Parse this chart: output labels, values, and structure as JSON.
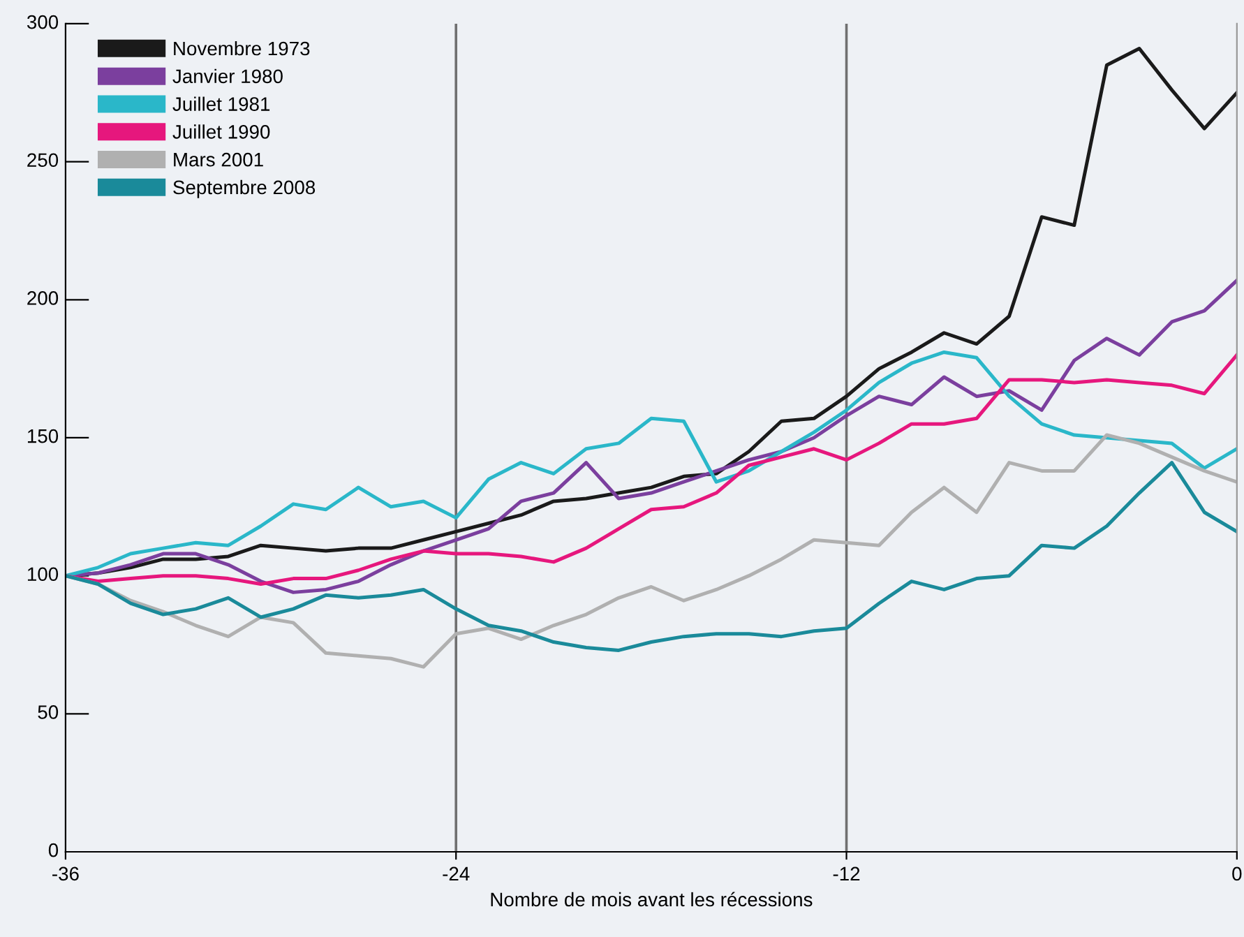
{
  "chart_data": {
    "type": "line",
    "xlabel": "Nombre de mois avant les récessions",
    "x": [
      -36,
      -35,
      -34,
      -33,
      -32,
      -31,
      -30,
      -29,
      -28,
      -27,
      -26,
      -25,
      -24,
      -23,
      -22,
      -21,
      -20,
      -19,
      -18,
      -17,
      -16,
      -15,
      -14,
      -13,
      -12,
      -11,
      -10,
      -9,
      -8,
      -7,
      -6,
      -5,
      -4,
      -3,
      -2,
      -1,
      0
    ],
    "series": [
      {
        "name": "Novembre 1973",
        "color": "#1a1a1a",
        "values": [
          100,
          101,
          103,
          106,
          106,
          107,
          111,
          110,
          109,
          110,
          110,
          113,
          116,
          119,
          122,
          127,
          128,
          130,
          132,
          136,
          137,
          145,
          156,
          157,
          165,
          175,
          181,
          188,
          184,
          194,
          230,
          227,
          285,
          291,
          276,
          262,
          275
        ]
      },
      {
        "name": "Janvier 1980",
        "color": "#7b3f9e",
        "values": [
          100,
          101,
          104,
          108,
          108,
          104,
          98,
          94,
          95,
          98,
          104,
          109,
          113,
          117,
          127,
          130,
          141,
          128,
          130,
          134,
          138,
          142,
          145,
          150,
          158,
          165,
          162,
          172,
          165,
          167,
          160,
          178,
          186,
          180,
          192,
          196,
          207
        ]
      },
      {
        "name": "Juillet 1981",
        "color": "#2ab7c9",
        "values": [
          100,
          103,
          108,
          110,
          112,
          111,
          118,
          126,
          124,
          132,
          125,
          127,
          121,
          135,
          141,
          137,
          146,
          148,
          157,
          156,
          134,
          138,
          145,
          152,
          160,
          170,
          177,
          181,
          179,
          165,
          155,
          151,
          150,
          149,
          148,
          139,
          146
        ]
      },
      {
        "name": "Juillet 1990",
        "color": "#e6177d",
        "values": [
          100,
          98,
          99,
          100,
          100,
          99,
          97,
          99,
          99,
          102,
          106,
          109,
          108,
          108,
          107,
          105,
          110,
          117,
          124,
          125,
          130,
          140,
          143,
          146,
          142,
          148,
          155,
          155,
          157,
          171,
          171,
          170,
          171,
          170,
          169,
          166,
          180
        ]
      },
      {
        "name": "Mars 2001",
        "color": "#b0b0b0",
        "values": [
          100,
          97,
          91,
          87,
          82,
          78,
          85,
          83,
          72,
          71,
          70,
          67,
          79,
          81,
          77,
          82,
          86,
          92,
          96,
          91,
          95,
          100,
          106,
          113,
          112,
          111,
          123,
          132,
          123,
          141,
          138,
          138,
          151,
          148,
          143,
          138,
          134
        ]
      },
      {
        "name": "Septembre 2008",
        "color": "#1a8a9a",
        "values": [
          100,
          97,
          90,
          86,
          88,
          92,
          85,
          88,
          93,
          92,
          93,
          95,
          88,
          82,
          80,
          76,
          74,
          73,
          76,
          78,
          79,
          79,
          78,
          80,
          81,
          90,
          98,
          95,
          99,
          100,
          111,
          110,
          118,
          130,
          141,
          123,
          116
        ]
      }
    ],
    "xlim": [
      -36,
      0
    ],
    "ylim": [
      0,
      300
    ],
    "xticks": [
      -36,
      -24,
      -12,
      0
    ],
    "yticks": [
      0,
      50,
      100,
      150,
      200,
      250,
      300
    ],
    "ref_lines": [
      {
        "axis": "x",
        "value": -24,
        "color": "#707070"
      },
      {
        "axis": "x",
        "value": -12,
        "color": "#707070"
      }
    ],
    "grid": false,
    "legend": "top left",
    "marker": "none",
    "line_style": "solid"
  }
}
